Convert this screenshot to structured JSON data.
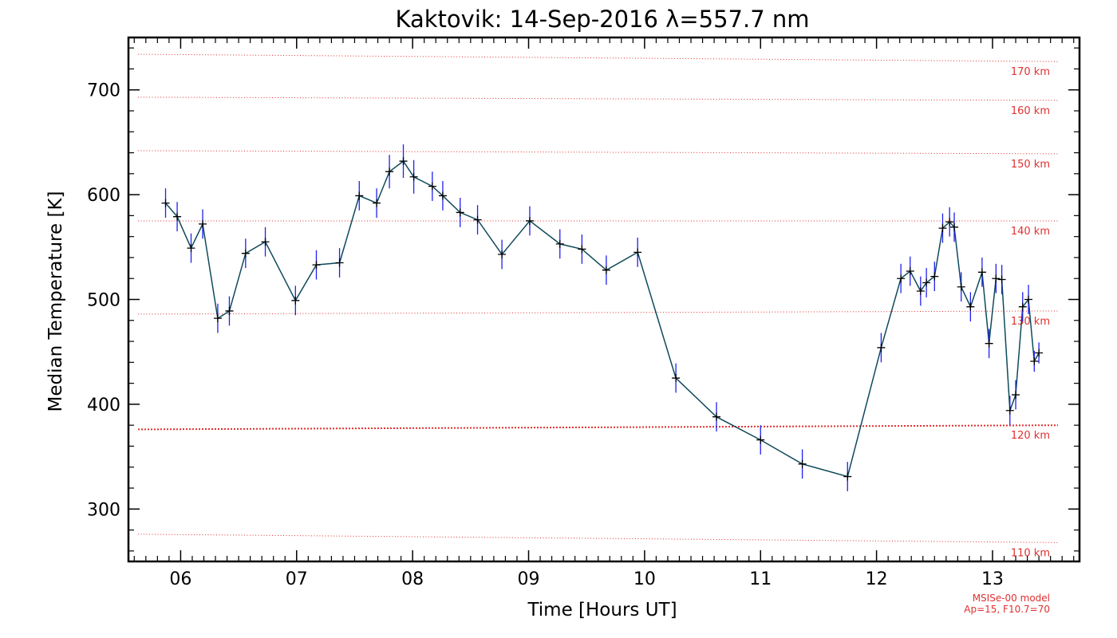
{
  "chart_data": {
    "type": "line",
    "title": "Kaktovik: 14-Sep-2016 λ=557.7 nm",
    "xlabel": "Time [Hours UT]",
    "ylabel": "Median Temperature [K]",
    "xlim": [
      5.55,
      13.75
    ],
    "ylim": [
      250,
      750
    ],
    "x_ticks": [
      6,
      7,
      8,
      9,
      10,
      11,
      12,
      13
    ],
    "x_tick_labels": [
      "06",
      "07",
      "08",
      "09",
      "10",
      "11",
      "12",
      "13"
    ],
    "y_ticks": [
      300,
      400,
      500,
      600,
      700
    ],
    "y_tick_labels": [
      "300",
      "400",
      "500",
      "600",
      "700"
    ],
    "series": [
      {
        "color": "#0f4a5c",
        "error_color": "#2020ee",
        "x": [
          5.87,
          5.97,
          6.09,
          6.19,
          6.32,
          6.42,
          6.56,
          6.73,
          6.99,
          7.17,
          7.37,
          7.54,
          7.69,
          7.8,
          7.92,
          8.01,
          8.17,
          8.26,
          8.41,
          8.56,
          8.77,
          9.01,
          9.27,
          9.46,
          9.67,
          9.94,
          10.27,
          10.62,
          11.0,
          11.36,
          11.75,
          12.04,
          12.21,
          12.29,
          12.38,
          12.43,
          12.5,
          12.57,
          12.63,
          12.67,
          12.73,
          12.81,
          12.91,
          12.97,
          13.03,
          13.08,
          13.15,
          13.2,
          13.26,
          13.31,
          13.36,
          13.4
        ],
        "y": [
          592,
          579,
          549,
          572,
          482,
          489,
          544,
          555,
          499,
          533,
          535,
          599,
          592,
          622,
          632,
          617,
          608,
          599,
          583,
          576,
          543,
          575,
          553,
          548,
          528,
          545,
          425,
          388,
          366,
          343,
          331,
          454,
          520,
          527,
          508,
          516,
          522,
          568,
          574,
          569,
          512,
          493,
          526,
          458,
          520,
          519,
          394,
          409,
          493,
          500,
          441,
          449
        ],
        "err": [
          14,
          14,
          14,
          14,
          14,
          14,
          14,
          14,
          14,
          14,
          14,
          14,
          14,
          16,
          16,
          16,
          14,
          14,
          14,
          14,
          14,
          14,
          14,
          14,
          14,
          14,
          14,
          14,
          14,
          14,
          14,
          14,
          14,
          14,
          14,
          14,
          14,
          14,
          14,
          14,
          14,
          14,
          14,
          14,
          14,
          14,
          14,
          14,
          14,
          14,
          10,
          10
        ]
      }
    ],
    "altitude_lines": [
      {
        "label": "170 km",
        "y": [
          734,
          727
        ]
      },
      {
        "label": "160 km",
        "y": [
          693,
          690
        ]
      },
      {
        "label": "150 km",
        "y": [
          642,
          639
        ]
      },
      {
        "label": "140 km",
        "y": [
          575,
          575
        ]
      },
      {
        "label": "130 km",
        "y": [
          486,
          489
        ]
      },
      {
        "label": "120 km",
        "y": [
          376,
          380
        ]
      },
      {
        "label": "110 km",
        "y": [
          276,
          268
        ]
      }
    ],
    "model_note": [
      "MSISe-00 model",
      "Ap=15, F10.7=70"
    ],
    "grid": false
  }
}
